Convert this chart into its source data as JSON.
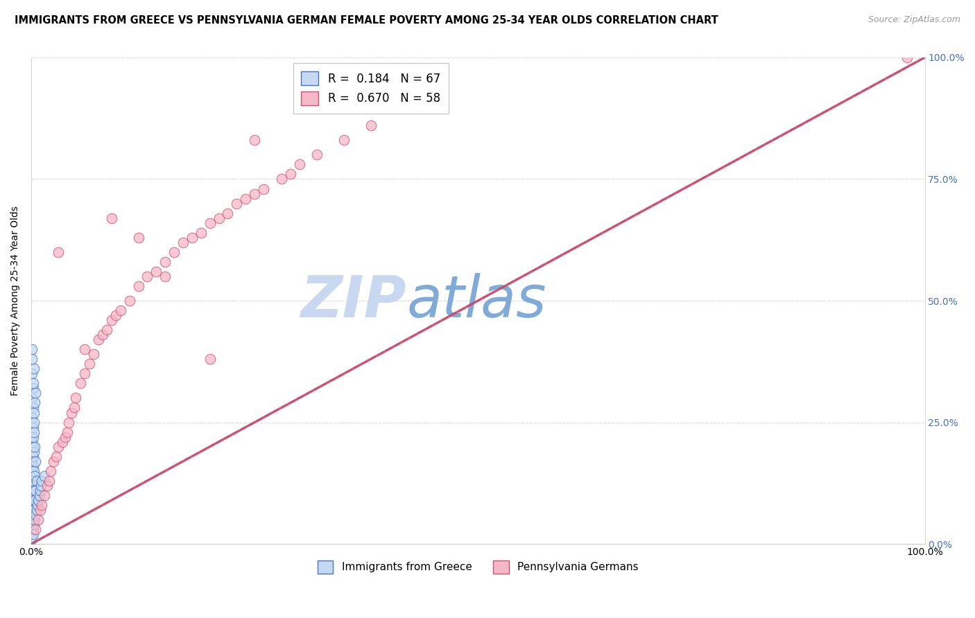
{
  "title": "IMMIGRANTS FROM GREECE VS PENNSYLVANIA GERMAN FEMALE POVERTY AMONG 25-34 YEAR OLDS CORRELATION CHART",
  "source": "Source: ZipAtlas.com",
  "ylabel": "Female Poverty Among 25-34 Year Olds",
  "xlim": [
    0,
    1
  ],
  "ylim": [
    0,
    1
  ],
  "legend_r1": "R =  0.184",
  "legend_n1": "N = 67",
  "legend_r2": "R =  0.670",
  "legend_n2": "N = 58",
  "blue_face": "#c5d9f1",
  "blue_edge": "#4472c4",
  "pink_face": "#f4b8c8",
  "pink_edge": "#d05070",
  "blue_line": "#6090d8",
  "pink_line": "#d04868",
  "grid_color": "#d8d8d8",
  "watermark_zip_color": "#c8d8f0",
  "watermark_atlas_color": "#90b8e0",
  "blue_scatter_x": [
    0.001,
    0.001,
    0.001,
    0.001,
    0.001,
    0.001,
    0.001,
    0.001,
    0.001,
    0.001,
    0.001,
    0.001,
    0.001,
    0.001,
    0.001,
    0.001,
    0.001,
    0.001,
    0.001,
    0.001,
    0.002,
    0.002,
    0.002,
    0.002,
    0.002,
    0.002,
    0.002,
    0.002,
    0.002,
    0.002,
    0.003,
    0.003,
    0.003,
    0.003,
    0.003,
    0.003,
    0.004,
    0.004,
    0.004,
    0.004,
    0.005,
    0.005,
    0.005,
    0.006,
    0.006,
    0.007,
    0.008,
    0.009,
    0.01,
    0.011,
    0.001,
    0.001,
    0.002,
    0.002,
    0.003,
    0.004,
    0.005,
    0.001,
    0.002,
    0.003,
    0.012,
    0.015,
    0.001,
    0.002,
    0.001,
    0.001,
    0.003
  ],
  "blue_scatter_y": [
    0.02,
    0.03,
    0.04,
    0.05,
    0.06,
    0.07,
    0.08,
    0.09,
    0.1,
    0.12,
    0.13,
    0.14,
    0.15,
    0.16,
    0.17,
    0.18,
    0.19,
    0.2,
    0.21,
    0.22,
    0.03,
    0.05,
    0.07,
    0.1,
    0.13,
    0.16,
    0.18,
    0.2,
    0.22,
    0.24,
    0.04,
    0.07,
    0.11,
    0.15,
    0.19,
    0.23,
    0.05,
    0.09,
    0.14,
    0.2,
    0.06,
    0.11,
    0.17,
    0.07,
    0.13,
    0.08,
    0.09,
    0.1,
    0.11,
    0.12,
    0.26,
    0.3,
    0.28,
    0.32,
    0.27,
    0.29,
    0.31,
    0.35,
    0.33,
    0.36,
    0.13,
    0.14,
    0.01,
    0.02,
    0.38,
    0.4,
    0.25
  ],
  "pink_scatter_x": [
    0.005,
    0.008,
    0.01,
    0.012,
    0.015,
    0.018,
    0.02,
    0.022,
    0.025,
    0.028,
    0.03,
    0.035,
    0.038,
    0.04,
    0.042,
    0.045,
    0.048,
    0.05,
    0.055,
    0.06,
    0.065,
    0.07,
    0.075,
    0.08,
    0.085,
    0.09,
    0.095,
    0.1,
    0.11,
    0.12,
    0.13,
    0.14,
    0.15,
    0.16,
    0.17,
    0.18,
    0.19,
    0.2,
    0.21,
    0.22,
    0.23,
    0.24,
    0.25,
    0.26,
    0.28,
    0.29,
    0.3,
    0.32,
    0.35,
    0.38,
    0.03,
    0.06,
    0.09,
    0.12,
    0.15,
    0.2,
    0.25,
    0.98
  ],
  "pink_scatter_y": [
    0.03,
    0.05,
    0.07,
    0.08,
    0.1,
    0.12,
    0.13,
    0.15,
    0.17,
    0.18,
    0.2,
    0.21,
    0.22,
    0.23,
    0.25,
    0.27,
    0.28,
    0.3,
    0.33,
    0.35,
    0.37,
    0.39,
    0.42,
    0.43,
    0.44,
    0.46,
    0.47,
    0.48,
    0.5,
    0.53,
    0.55,
    0.56,
    0.58,
    0.6,
    0.62,
    0.63,
    0.64,
    0.66,
    0.67,
    0.68,
    0.7,
    0.71,
    0.72,
    0.73,
    0.75,
    0.76,
    0.78,
    0.8,
    0.83,
    0.86,
    0.6,
    0.4,
    0.67,
    0.63,
    0.55,
    0.38,
    0.83,
    1.0
  ],
  "blue_line_x": [
    0.0,
    1.0
  ],
  "blue_line_y": [
    0.0,
    1.0
  ],
  "pink_line_x": [
    0.0,
    1.0
  ],
  "pink_line_y": [
    0.0,
    1.0
  ]
}
